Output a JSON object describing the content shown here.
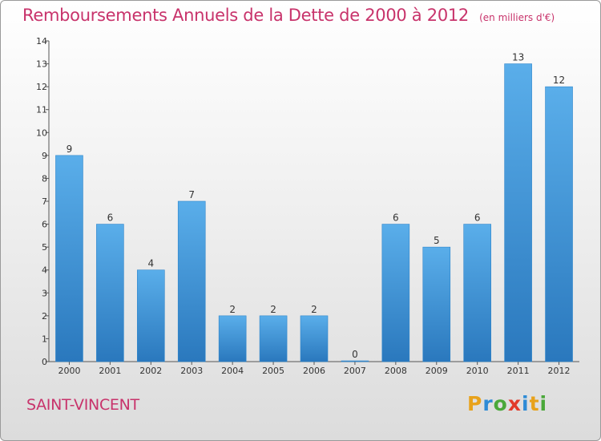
{
  "title": "Remboursements Annuels de la Dette de 2000 à 2012",
  "subtitle": "(en milliers d'€)",
  "commune": "SAINT-VINCENT",
  "logo": {
    "letters": [
      "P",
      "r",
      "o",
      "x",
      "i",
      "t",
      "i"
    ],
    "colors": [
      "#e8a21b",
      "#2d8bd6",
      "#4aa83a",
      "#e23b2a",
      "#2d8bd6",
      "#e8a21b",
      "#4aa83a"
    ]
  },
  "colors": {
    "bar": "#4a9fe0",
    "bar_dark": "#2a78bd",
    "title": "#c8336b"
  },
  "chart_data": {
    "type": "bar",
    "categories": [
      "2000",
      "2001",
      "2002",
      "2003",
      "2004",
      "2005",
      "2006",
      "2007",
      "2008",
      "2009",
      "2010",
      "2011",
      "2012"
    ],
    "values": [
      9,
      6,
      4,
      7,
      2,
      2,
      2,
      0,
      6,
      5,
      6,
      13,
      12
    ],
    "title": "Remboursements Annuels de la Dette de 2000 à 2012",
    "ylim": [
      0,
      14
    ],
    "yticks": [
      "0",
      "1",
      "2",
      "3",
      "4",
      "5",
      "6",
      "7",
      "8",
      "9",
      "10",
      "11",
      "12",
      "13",
      "14"
    ],
    "grid": false
  }
}
